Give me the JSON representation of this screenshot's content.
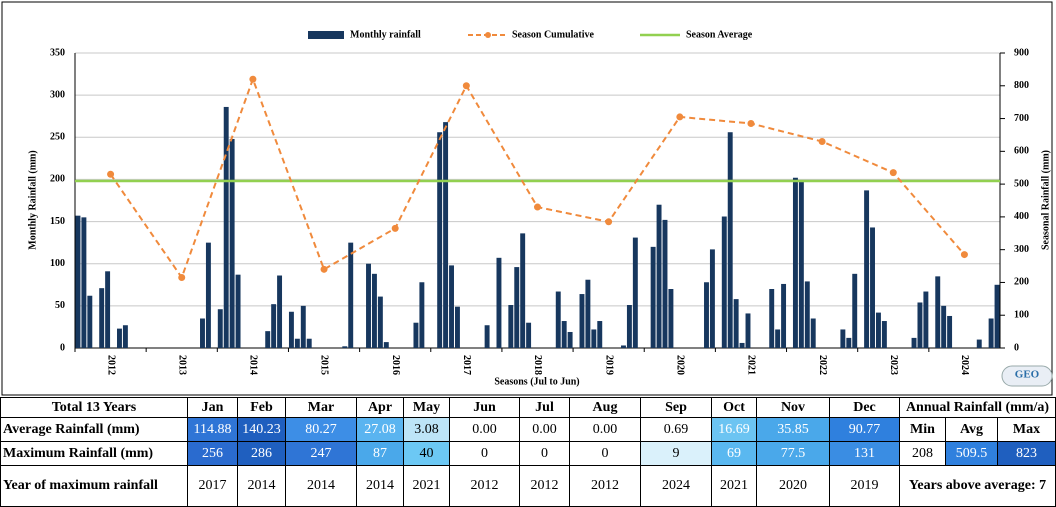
{
  "chart_data": {
    "type": "combo",
    "legend": [
      "Monthly rainfall",
      "Season Cumulative",
      "Season Average"
    ],
    "bar_color": "#17375e",
    "line_color": "#f08a3c",
    "average_color": "#92d050",
    "season_average": 509.5,
    "seasons": [
      "2012",
      "2013",
      "2014",
      "2015",
      "2016",
      "2017",
      "2018",
      "2019",
      "2020",
      "2021",
      "2022",
      "2023",
      "2024"
    ],
    "monthly_rainfall": [
      157,
      155,
      62,
      0,
      71,
      91,
      0,
      23,
      27,
      0,
      0,
      0,
      0,
      0,
      0,
      0,
      0,
      0,
      0,
      0,
      0,
      35,
      125,
      0,
      46,
      286,
      248,
      87,
      0,
      0,
      0,
      0,
      20,
      52,
      86,
      0,
      43,
      11,
      50,
      11,
      0,
      0,
      0,
      0,
      0,
      2,
      125,
      0,
      0,
      100,
      88,
      61,
      7,
      0,
      0,
      0,
      0,
      30,
      78,
      0,
      0,
      256,
      268,
      98,
      49,
      0,
      0,
      0,
      0,
      27,
      0,
      107,
      0,
      51,
      96,
      136,
      30,
      0,
      0,
      0,
      0,
      67,
      32,
      19,
      0,
      64,
      81,
      22,
      32,
      0,
      0,
      0,
      3,
      51,
      131,
      0,
      0,
      120,
      170,
      152,
      70,
      0,
      0,
      0,
      0,
      0,
      78,
      117,
      0,
      156,
      256,
      58,
      6,
      41,
      0,
      0,
      0,
      70,
      22,
      76,
      0,
      202,
      198,
      79,
      35,
      0,
      0,
      0,
      0,
      22,
      12,
      88,
      0,
      187,
      143,
      42,
      32,
      0,
      0,
      0,
      0,
      12,
      54,
      67,
      0,
      85,
      50,
      38,
      0,
      0,
      0,
      0,
      10,
      0,
      35,
      75
    ],
    "season_cumulative": [
      530,
      215,
      820,
      240,
      365,
      800,
      430,
      385,
      705,
      685,
      630,
      535,
      285
    ],
    "xlabel": "Seasons (Jul to Jun)",
    "ylabel": "Monthly Rainfall (mm)",
    "y2label": "Seasonal Rainfall (mm)",
    "ylim": [
      0,
      350
    ],
    "yticks": [
      0,
      50,
      100,
      150,
      200,
      250,
      300,
      350
    ],
    "y2lim": [
      0,
      900
    ],
    "y2ticks": [
      0,
      100,
      200,
      300,
      400,
      500,
      600,
      700,
      800,
      900
    ],
    "grid": true
  },
  "table": {
    "header": [
      "Total 13 Years",
      "Jan",
      "Feb",
      "Mar",
      "Apr",
      "May",
      "Jun",
      "Jul",
      "Aug",
      "Sep",
      "Oct",
      "Nov",
      "Dec",
      "Annual Rainfall (mm/a)"
    ],
    "rows": [
      {
        "cells": [
          "Average Rainfall (mm)",
          "114.88",
          "140.23",
          "80.27",
          "27.08",
          "3.08",
          "0.00",
          "0.00",
          "0.00",
          "0.69",
          "16.69",
          "35.85",
          "90.77",
          "Min",
          "Avg",
          "Max"
        ],
        "colors": [
          "#ffffff",
          "#2f75d6",
          "#1f5fbf",
          "#3d8ee6",
          "#5ab4f0",
          "#bde4f7",
          "#ffffff",
          "#ffffff",
          "#ffffff",
          "#ffffff",
          "#6cc4f2",
          "#4aa8ea",
          "#2f80de",
          "#ffffff",
          "#ffffff",
          "#ffffff"
        ]
      },
      {
        "cells": [
          "Maximum Rainfall (mm)",
          "256",
          "286",
          "247",
          "87",
          "40",
          "0",
          "0",
          "0",
          "9",
          "69",
          "77.5",
          "131",
          "208",
          "509.5",
          "823"
        ],
        "colors": [
          "#ffffff",
          "#2a6bcf",
          "#1f5fbf",
          "#2f75d6",
          "#4aa8ea",
          "#6cc8f4",
          "#ffffff",
          "#ffffff",
          "#ffffff",
          "#daf1fb",
          "#5ab8f0",
          "#4aa8ea",
          "#3a8de3",
          "#ffffff",
          "#2f80de",
          "#1f5fbf"
        ]
      },
      {
        "cells": [
          "Year of maximum rainfall",
          "2017",
          "2014",
          "2014",
          "2014",
          "2021",
          "2012",
          "2012",
          "2012",
          "2024",
          "2021",
          "2020",
          "2019",
          "Years above average: 7"
        ],
        "colors": [
          "#ffffff",
          "#ffffff",
          "#ffffff",
          "#ffffff",
          "#ffffff",
          "#ffffff",
          "#ffffff",
          "#ffffff",
          "#ffffff",
          "#ffffff",
          "#ffffff",
          "#ffffff",
          "#ffffff",
          "#ffffff"
        ]
      }
    ]
  }
}
